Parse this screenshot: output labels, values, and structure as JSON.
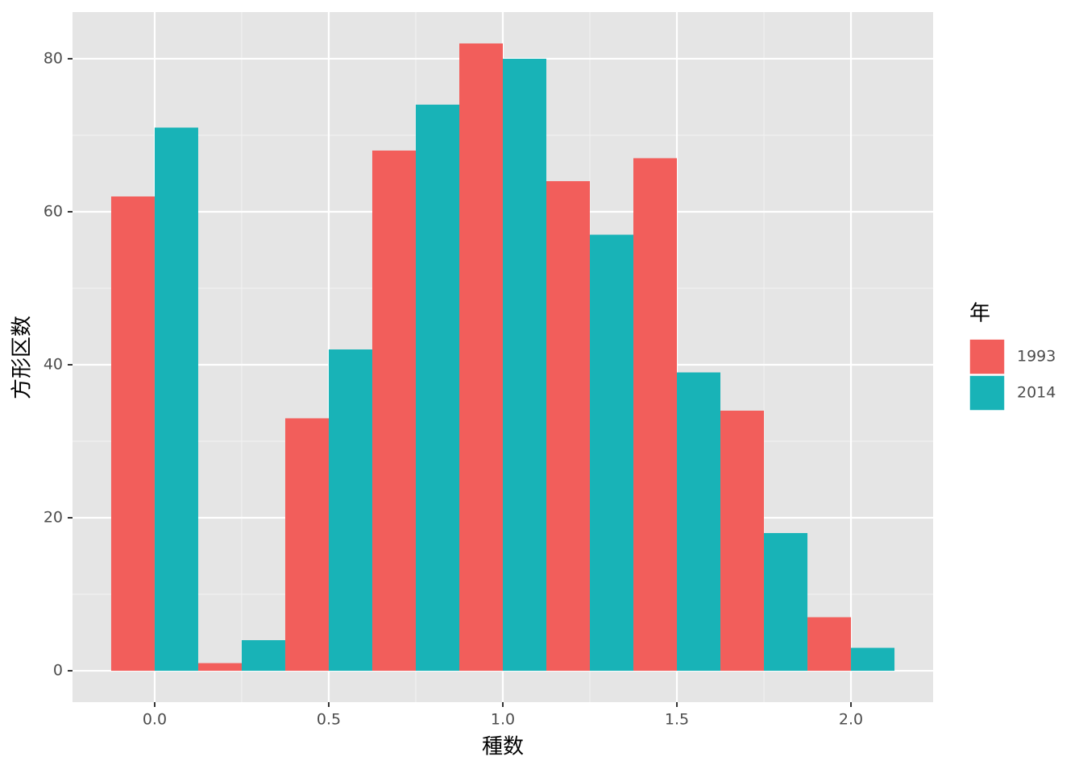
{
  "chart_data": {
    "type": "histogram",
    "x_label": "種数",
    "y_label": "方形区数",
    "legend_title": "年",
    "bins": [
      -0.125,
      0.125,
      0.375,
      0.625,
      0.875,
      1.125,
      1.375,
      1.625,
      1.875,
      2.125
    ],
    "series": [
      {
        "name": "1993",
        "color": "#f25e5b",
        "values": [
          62,
          1,
          33,
          68,
          82,
          64,
          67,
          34,
          7
        ]
      },
      {
        "name": "2014",
        "color": "#18b3b7",
        "values": [
          71,
          4,
          42,
          74,
          80,
          57,
          39,
          18,
          3
        ]
      }
    ],
    "xlim": [
      -0.236,
      2.236
    ],
    "xticks": [
      {
        "value": 0,
        "label": "0.0"
      },
      0.5,
      {
        "value": 1,
        "label": "1.0"
      },
      1.5,
      {
        "value": 2,
        "label": "2.0"
      }
    ],
    "ylim": [
      -4.1,
      86.1
    ],
    "yticks": [
      0,
      20,
      40,
      60,
      80
    ],
    "grid": true,
    "legend": "right"
  }
}
